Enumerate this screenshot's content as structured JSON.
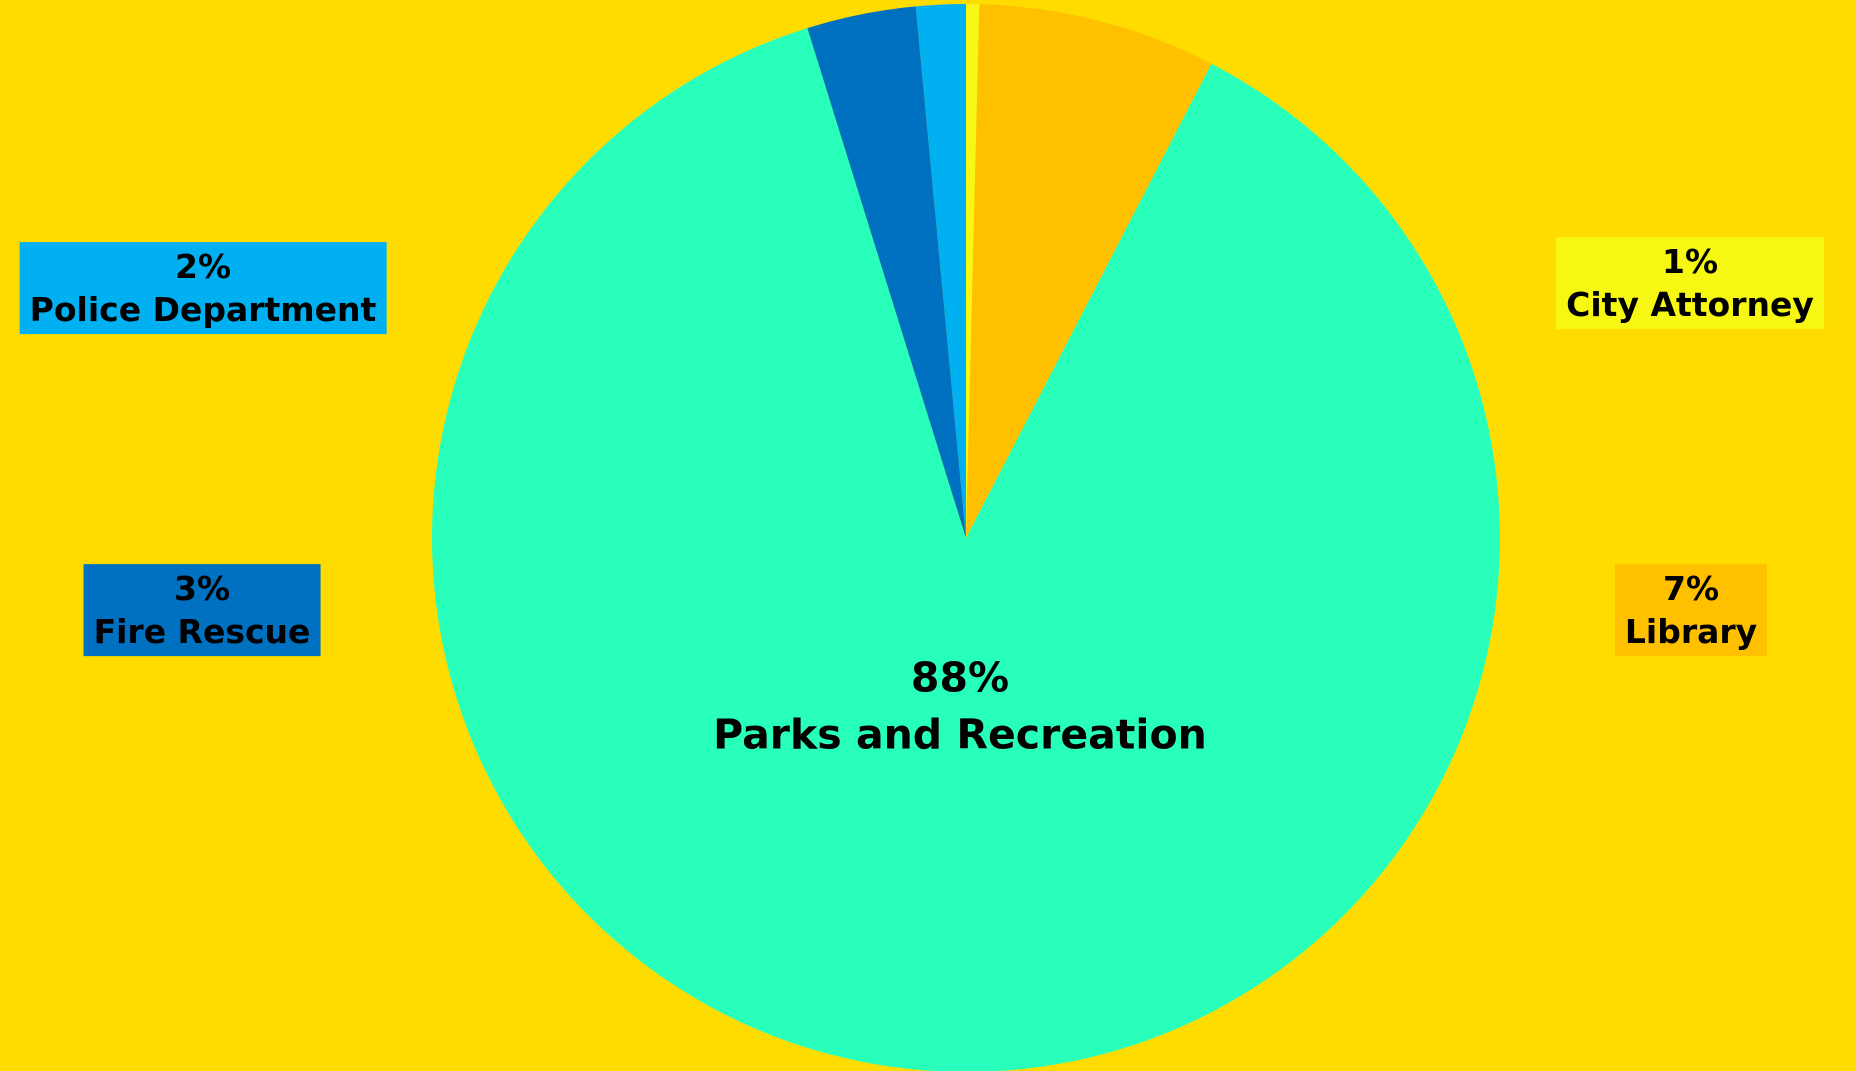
{
  "chart_data": {
    "type": "pie",
    "background": "#FFDC00",
    "start_angle_deg": 0,
    "direction": "clockwise",
    "slices": [
      {
        "label": "City Attorney",
        "value": 0.4,
        "pct_label": "1%",
        "color": "#F7F714"
      },
      {
        "label": "Library",
        "value": 7.2,
        "pct_label": "7%",
        "color": "#FFC000"
      },
      {
        "label": "Parks and Recreation",
        "value": 87.6,
        "pct_label": "88%",
        "color": "#28FFBB"
      },
      {
        "label": "Fire Rescue",
        "value": 3.3,
        "pct_label": "3%",
        "color": "#0070C0"
      },
      {
        "label": "Police Department",
        "value": 1.5,
        "pct_label": "2%",
        "color": "#00B0F0"
      }
    ]
  }
}
